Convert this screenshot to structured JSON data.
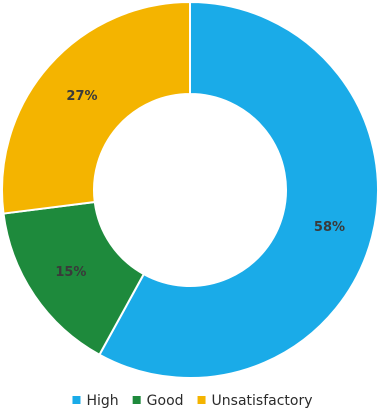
{
  "chart_data": {
    "type": "pie",
    "variant": "donut",
    "categories": [
      "High",
      "Good",
      "Unsatisfactory"
    ],
    "values": [
      58,
      15,
      27
    ],
    "labels": [
      "58%",
      "15%",
      "27%"
    ],
    "colors": [
      "#1aabe8",
      "#1e8a3c",
      "#f4b400"
    ],
    "legend": {
      "position": "bottom",
      "items": [
        "High",
        "Good",
        "Unsatisfactory"
      ]
    }
  }
}
